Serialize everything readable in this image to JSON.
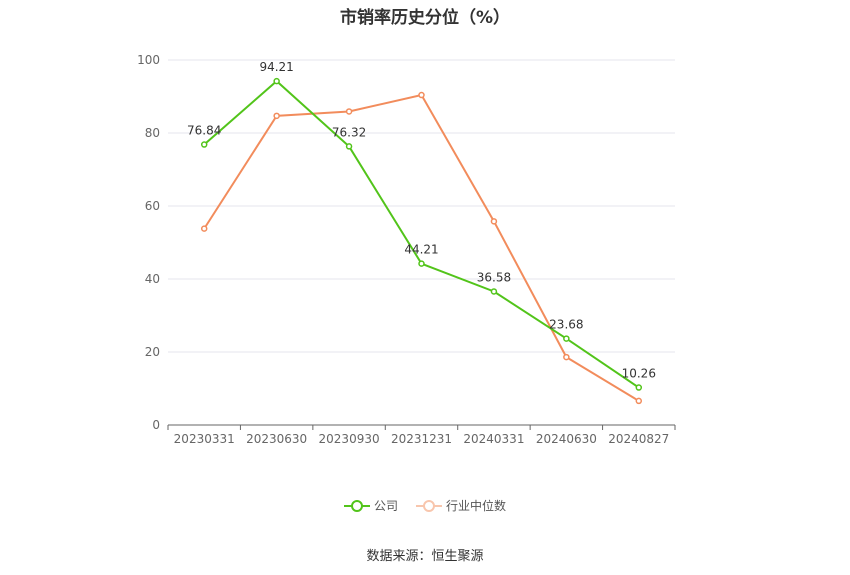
{
  "chart_data": {
    "type": "line",
    "title": "市销率历史分位（%）",
    "categories": [
      "20230331",
      "20230630",
      "20230930",
      "20231231",
      "20240331",
      "20240630",
      "20240827"
    ],
    "ylim": [
      0,
      100
    ],
    "yticks": [
      0,
      20,
      40,
      60,
      80,
      100
    ],
    "grid": true,
    "legend_position": "bottom",
    "series": [
      {
        "name": "公司",
        "color": "#52c41a",
        "values": [
          76.84,
          94.21,
          76.32,
          44.21,
          36.58,
          23.68,
          10.26
        ],
        "labels": [
          "76.84",
          "94.21",
          "76.32",
          "44.21",
          "36.58",
          "23.68",
          "10.26"
        ]
      },
      {
        "name": "行业中位数",
        "color": "#f28c5c",
        "values": [
          53.8,
          84.7,
          85.9,
          90.4,
          55.8,
          18.6,
          6.6
        ]
      }
    ]
  },
  "source": "数据来源：恒生聚源"
}
